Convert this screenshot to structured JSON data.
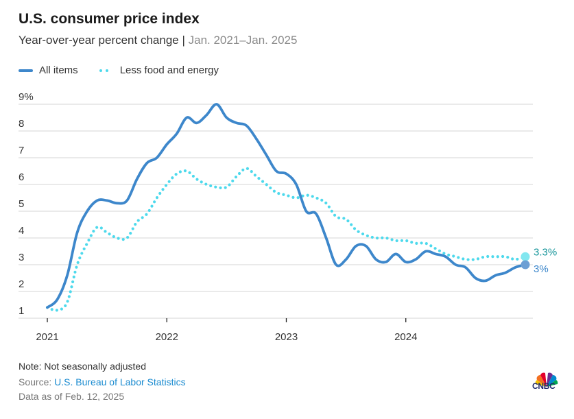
{
  "title": "U.S. consumer price index",
  "subtitle": "Year-over-year percent change",
  "subtitle_separator": "|",
  "date_range": "Jan. 2021–Jan. 2025",
  "legend": [
    {
      "label": "All items",
      "style": "solid",
      "color": "#3d87cb"
    },
    {
      "label": "Less food and energy",
      "style": "dotted",
      "color": "#4dd9ec"
    }
  ],
  "chart_data": {
    "type": "line",
    "title": "U.S. consumer price index",
    "subtitle": "Year-over-year percent change | Jan. 2021–Jan. 2025",
    "x_start": "Jan. 2021",
    "x_end": "Jan. 2025",
    "x_frequency": "monthly",
    "x_tick_labels": [
      "2021",
      "2022",
      "2023",
      "2024"
    ],
    "y_tick_labels": [
      "1",
      "2",
      "3",
      "4",
      "5",
      "6",
      "7",
      "8",
      "9%"
    ],
    "ylim": [
      1,
      9
    ],
    "grid": true,
    "legend_position": "top-left",
    "series": [
      {
        "name": "All items",
        "color": "#3d87cb",
        "style": "solid",
        "end_label": "3%",
        "values": [
          1.4,
          1.7,
          2.6,
          4.2,
          5.0,
          5.4,
          5.4,
          5.3,
          5.4,
          6.2,
          6.8,
          7.0,
          7.5,
          7.9,
          8.5,
          8.3,
          8.6,
          9.0,
          8.5,
          8.3,
          8.2,
          7.7,
          7.1,
          6.5,
          6.4,
          6.0,
          5.0,
          4.9,
          4.0,
          3.0,
          3.2,
          3.7,
          3.7,
          3.2,
          3.1,
          3.4,
          3.1,
          3.2,
          3.5,
          3.4,
          3.3,
          3.0,
          2.9,
          2.5,
          2.4,
          2.6,
          2.7,
          2.9,
          3.0
        ]
      },
      {
        "name": "Less food and energy",
        "color": "#4dd9ec",
        "style": "dotted",
        "end_label": "3.3%",
        "values": [
          1.4,
          1.3,
          1.6,
          3.0,
          3.8,
          4.4,
          4.2,
          4.0,
          4.0,
          4.6,
          4.9,
          5.5,
          6.0,
          6.4,
          6.5,
          6.2,
          6.0,
          5.9,
          5.9,
          6.3,
          6.6,
          6.3,
          6.0,
          5.7,
          5.6,
          5.5,
          5.6,
          5.5,
          5.3,
          4.8,
          4.7,
          4.3,
          4.1,
          4.0,
          4.0,
          3.9,
          3.9,
          3.8,
          3.8,
          3.6,
          3.4,
          3.3,
          3.2,
          3.2,
          3.3,
          3.3,
          3.3,
          3.2,
          3.3
        ]
      }
    ]
  },
  "footer": {
    "note": "Note: Not seasonally adjusted",
    "source_label": "Source:",
    "source_link": "U.S. Bureau of Labor Statistics",
    "data_as_of": "Data as of Feb. 12, 2025",
    "logo_text": "CNBC"
  }
}
